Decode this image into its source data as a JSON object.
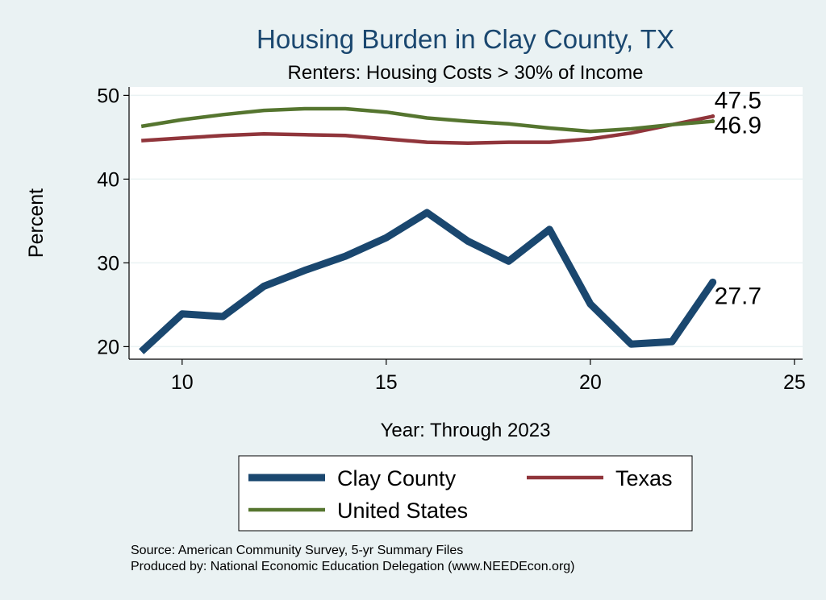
{
  "chart_data": {
    "type": "line",
    "title": "Housing Burden in Clay County, TX",
    "subtitle": "Renters: Housing Costs > 30% of Income",
    "xlabel": "Year: Through 2023",
    "ylabel": "Percent",
    "xlim": [
      8.7,
      25.2
    ],
    "ylim": [
      18.5,
      51
    ],
    "xticks": [
      10,
      15,
      20,
      25
    ],
    "yticks": [
      20,
      30,
      40,
      50
    ],
    "grid": true,
    "legend_position": "bottom",
    "series": [
      {
        "name": "Clay County",
        "color": "#1a476f",
        "x": [
          9,
          10,
          11,
          12,
          13,
          14,
          15,
          16,
          17,
          18,
          19,
          20,
          21,
          22,
          23
        ],
        "values": [
          19.4,
          23.9,
          23.6,
          27.2,
          29.1,
          30.8,
          33.0,
          36.0,
          32.6,
          30.2,
          34.0,
          25.1,
          20.3,
          20.6,
          27.7
        ],
        "end_label": "27.7"
      },
      {
        "name": "Texas",
        "color": "#90353b",
        "x": [
          9,
          10,
          11,
          12,
          13,
          14,
          15,
          16,
          17,
          18,
          19,
          20,
          21,
          22,
          23
        ],
        "values": [
          44.6,
          44.9,
          45.2,
          45.4,
          45.3,
          45.2,
          44.8,
          44.4,
          44.3,
          44.4,
          44.4,
          44.8,
          45.5,
          46.5,
          47.5
        ],
        "end_label": "47.5"
      },
      {
        "name": "United States",
        "color": "#55752f",
        "x": [
          9,
          10,
          11,
          12,
          13,
          14,
          15,
          16,
          17,
          18,
          19,
          20,
          21,
          22,
          23
        ],
        "values": [
          46.3,
          47.1,
          47.7,
          48.2,
          48.4,
          48.4,
          48.0,
          47.3,
          46.9,
          46.6,
          46.1,
          45.7,
          46.0,
          46.5,
          46.9
        ],
        "end_label": "46.9"
      }
    ]
  },
  "source_note": "Source: American Community Survey, 5-yr Summary Files",
  "producer_note": "Produced by: National Economic Education Delegation (www.NEEDEcon.org)"
}
